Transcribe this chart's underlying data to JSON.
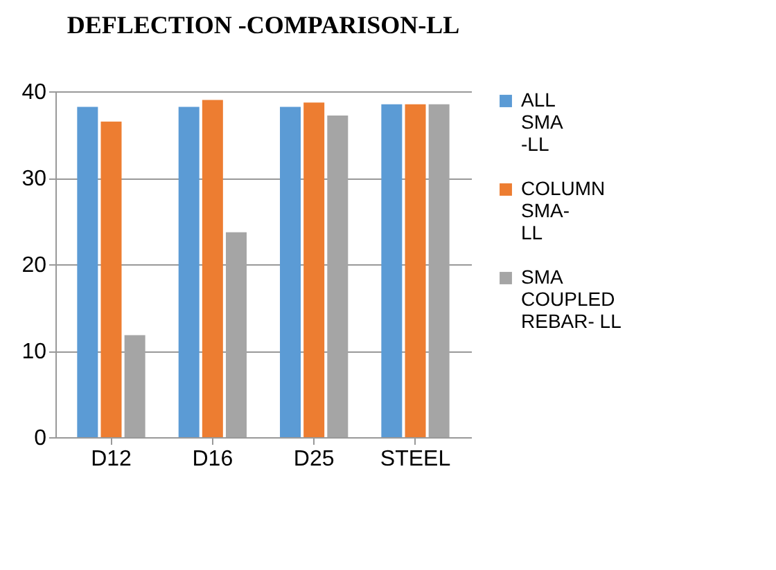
{
  "chart_data": {
    "type": "bar",
    "title": "DEFLECTION -COMPARISON-LL",
    "categories": [
      "D12",
      "D16",
      "D25",
      "STEEL"
    ],
    "series": [
      {
        "name": "ALL SMA -LL",
        "color": "#5b9bd5",
        "values": [
          38.2,
          38.2,
          38.2,
          38.5
        ]
      },
      {
        "name": "COLUMN SMA- LL",
        "color": "#ed7d31",
        "values": [
          36.5,
          39.0,
          38.7,
          38.5
        ]
      },
      {
        "name": "SMA COUPLED REBAR- LL",
        "color": "#a5a5a5",
        "values": [
          11.8,
          23.7,
          37.2,
          38.5
        ]
      }
    ],
    "ylim": [
      0,
      40
    ],
    "yticks": [
      0,
      10,
      20,
      30,
      40
    ],
    "grid": "y",
    "legend": "right"
  }
}
